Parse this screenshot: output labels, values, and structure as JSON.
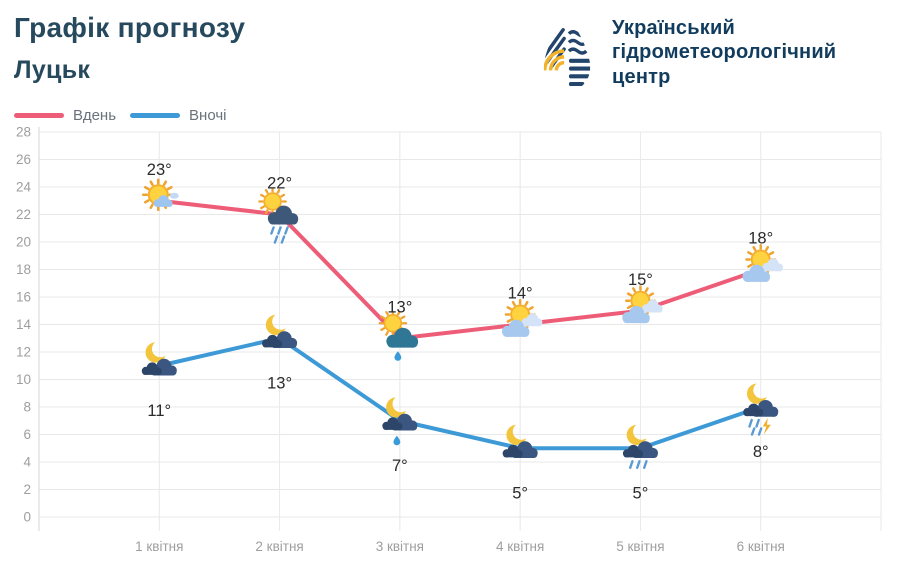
{
  "header": {
    "title": "Графік прогнозу",
    "city": "Луцьк"
  },
  "logo": {
    "line1": "Український",
    "line2": "гідрометеорологічний",
    "line3": "центр"
  },
  "legend": [
    {
      "label": "Вдень",
      "color": "#ee5d78"
    },
    {
      "label": "Вночі",
      "color": "#3d9ad6"
    }
  ],
  "chart_data": {
    "type": "line",
    "title": "Графік прогнозу — Луцьк",
    "categories": [
      "1 квітня",
      "2 квітня",
      "3 квітня",
      "4 квітня",
      "5 квітня",
      "6 квітня"
    ],
    "series": [
      {
        "name": "Вдень",
        "color": "#ee5d78",
        "values": [
          23,
          22,
          13,
          14,
          15,
          18
        ],
        "labels": [
          "23°",
          "22°",
          "13°",
          "14°",
          "15°",
          "18°"
        ],
        "icons": [
          "sun-small-cloud",
          "sun-rain-dark",
          "sun-rain-teal",
          "sun-cloud",
          "sun-cloud",
          "sun-cloud"
        ],
        "label_position": "above"
      },
      {
        "name": "Вночі",
        "color": "#3d9ad6",
        "values": [
          11,
          13,
          7,
          5,
          5,
          8
        ],
        "labels": [
          "11°",
          "13°",
          "7°",
          "5°",
          "5°",
          "8°"
        ],
        "icons": [
          "moon-cloud",
          "moon-cloud",
          "moon-rain-drop",
          "moon-cloud",
          "moon-rain",
          "moon-rain-bolt"
        ],
        "label_position": "below"
      }
    ],
    "ylim": [
      0,
      28
    ],
    "ytick_step": 2,
    "grid": true,
    "legend_position": "top-left",
    "colors": {
      "grid": "#e8e8e8",
      "axis": "#d6d6d6",
      "tick_label": "#9e9e9e",
      "point_label": "#2b2b2b"
    }
  }
}
